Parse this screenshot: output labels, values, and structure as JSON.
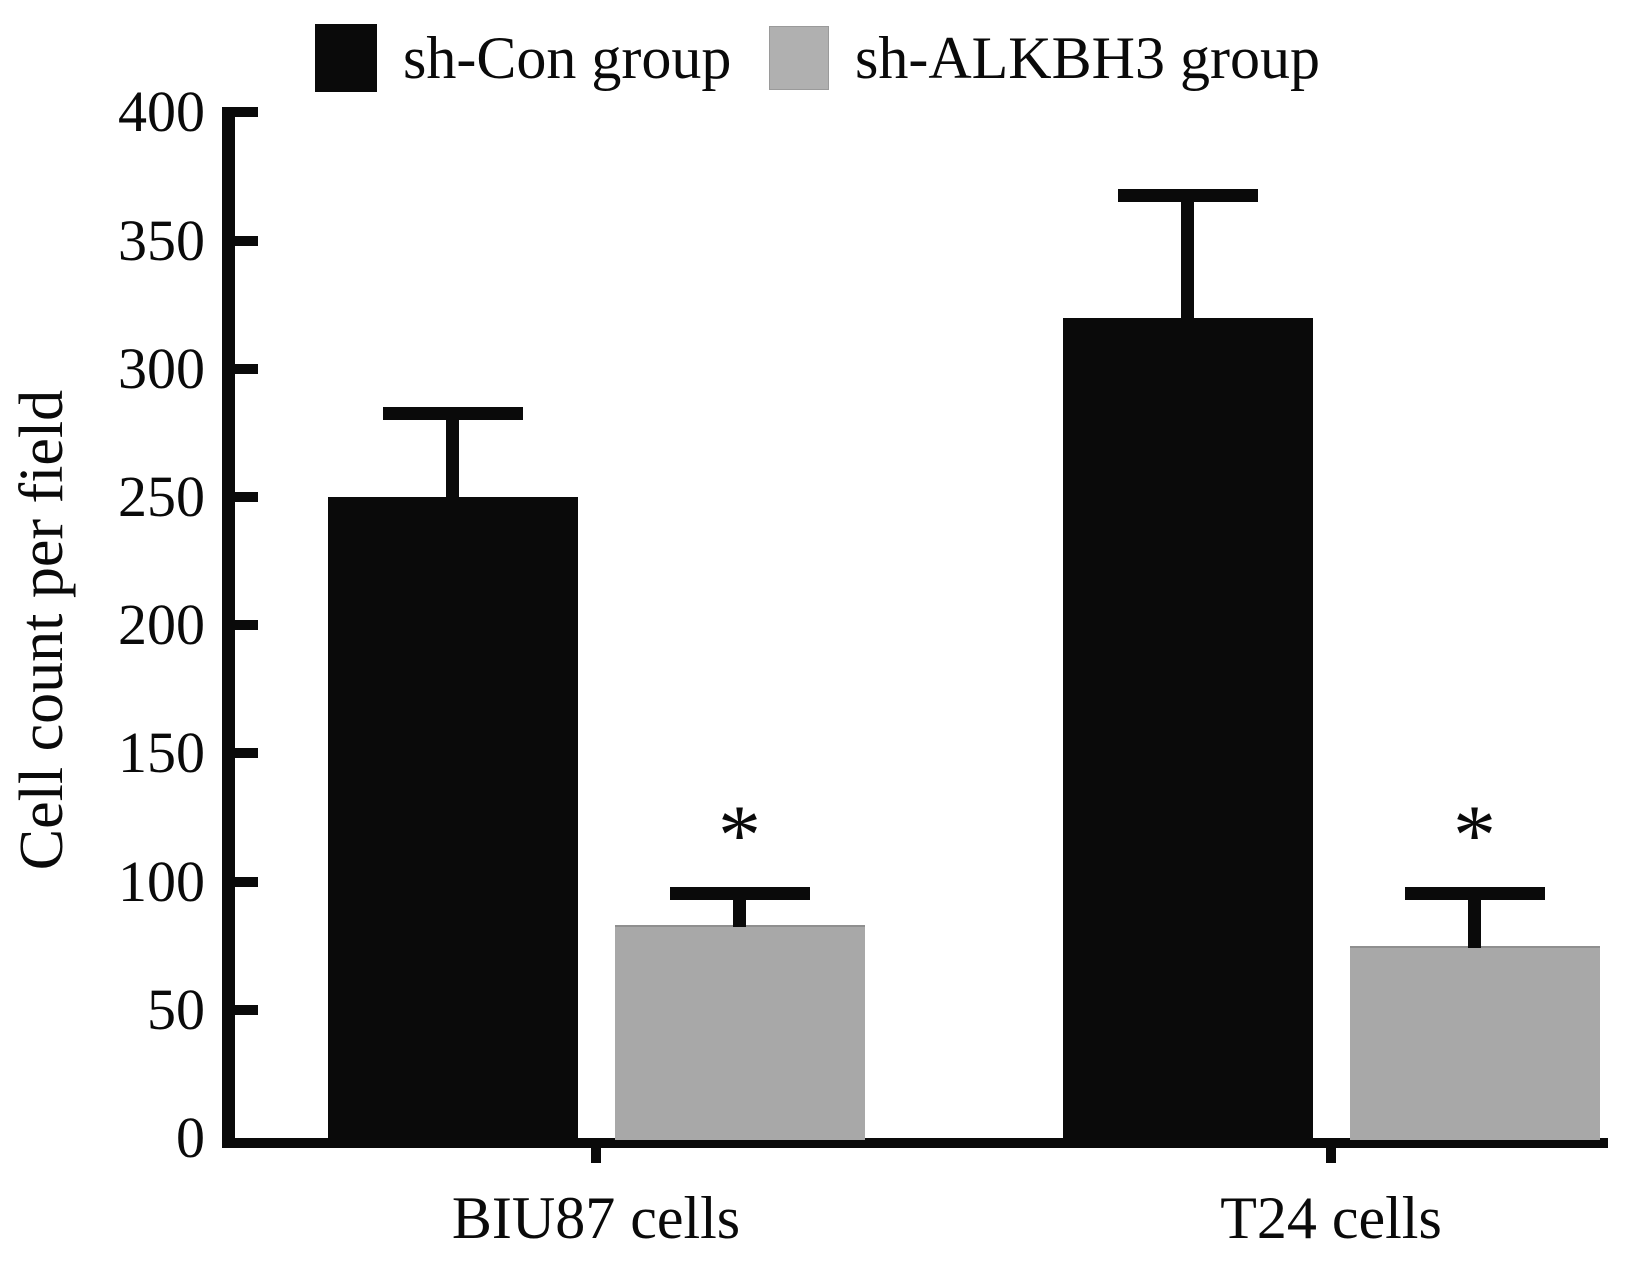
{
  "chart_data": {
    "type": "bar",
    "title": "",
    "ylabel": "Cell count per field",
    "xlabel": "",
    "categories": [
      "BIU87 cells",
      "T24 cells"
    ],
    "series": [
      {
        "name": "sh-Con group",
        "color": "#0a0a0a",
        "values": [
          250,
          320
        ],
        "errors_plus": [
          35,
          50
        ],
        "significance": [
          "",
          ""
        ]
      },
      {
        "name": "sh-ALKBH3 group",
        "color": "#a8a8a8",
        "values": [
          83,
          75
        ],
        "errors_plus": [
          15,
          23
        ],
        "significance": [
          "*",
          "*"
        ]
      }
    ],
    "ylim": [
      0,
      400
    ],
    "ytick_step": 50,
    "ytick_labels": [
      "0",
      "50",
      "100",
      "150",
      "200",
      "250",
      "300",
      "350",
      "400"
    ],
    "grid": false,
    "legend_position": "top",
    "error_bars": "upper only",
    "significance_marker": "*"
  }
}
